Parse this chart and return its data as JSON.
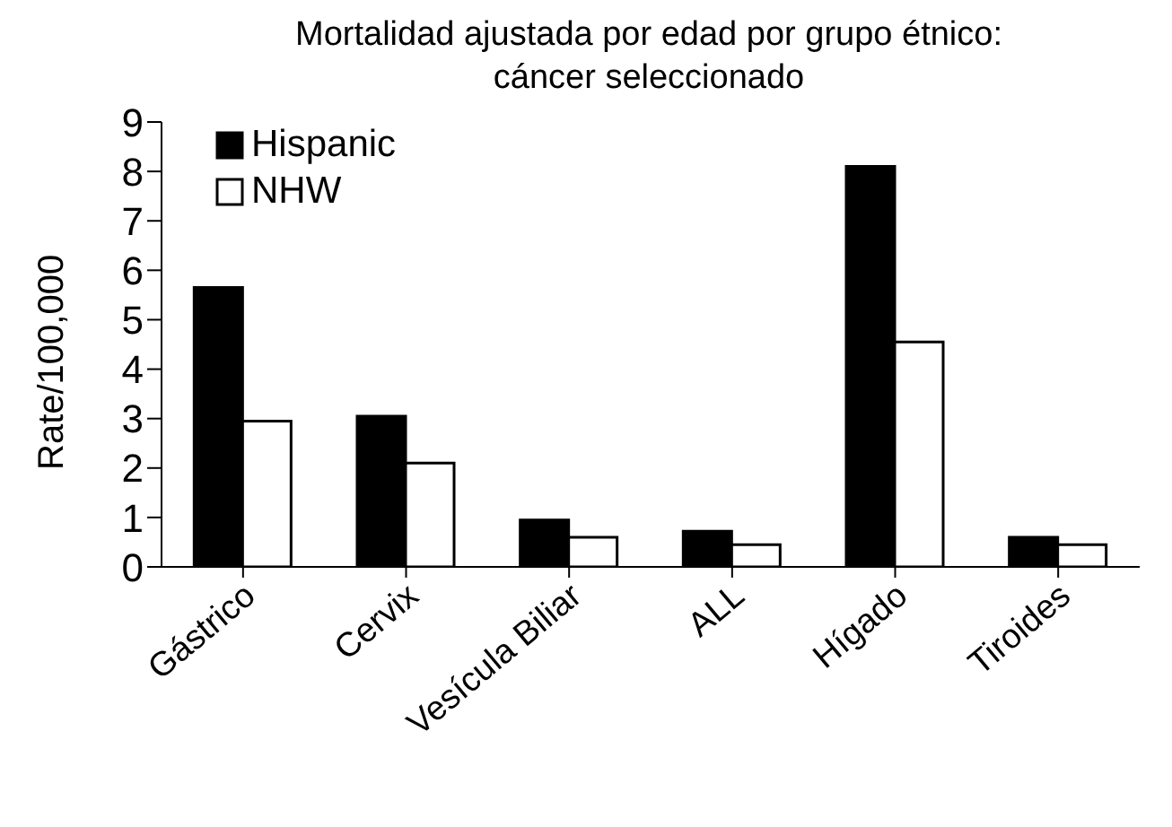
{
  "chart_data": {
    "type": "bar",
    "title": "Mortalidad ajustada por edad por grupo étnico:\ncáncer seleccionado",
    "ylabel": "Rate/100,000",
    "categories": [
      "Gástrico",
      "Cervix",
      "Vesícula Biliar",
      "ALL",
      "Hígado",
      "Tiroides"
    ],
    "series": [
      {
        "name": "Hispanic",
        "color": "#000000",
        "values": [
          5.65,
          3.05,
          0.95,
          0.72,
          8.1,
          0.6
        ]
      },
      {
        "name": "NHW",
        "color": "#ffffff",
        "values": [
          2.95,
          2.1,
          0.6,
          0.45,
          4.55,
          0.45
        ]
      }
    ],
    "ylim": [
      0,
      9
    ],
    "yticks": [
      0,
      1,
      2,
      3,
      4,
      5,
      6,
      7,
      8,
      9
    ],
    "grid": false,
    "legend": "top left"
  }
}
